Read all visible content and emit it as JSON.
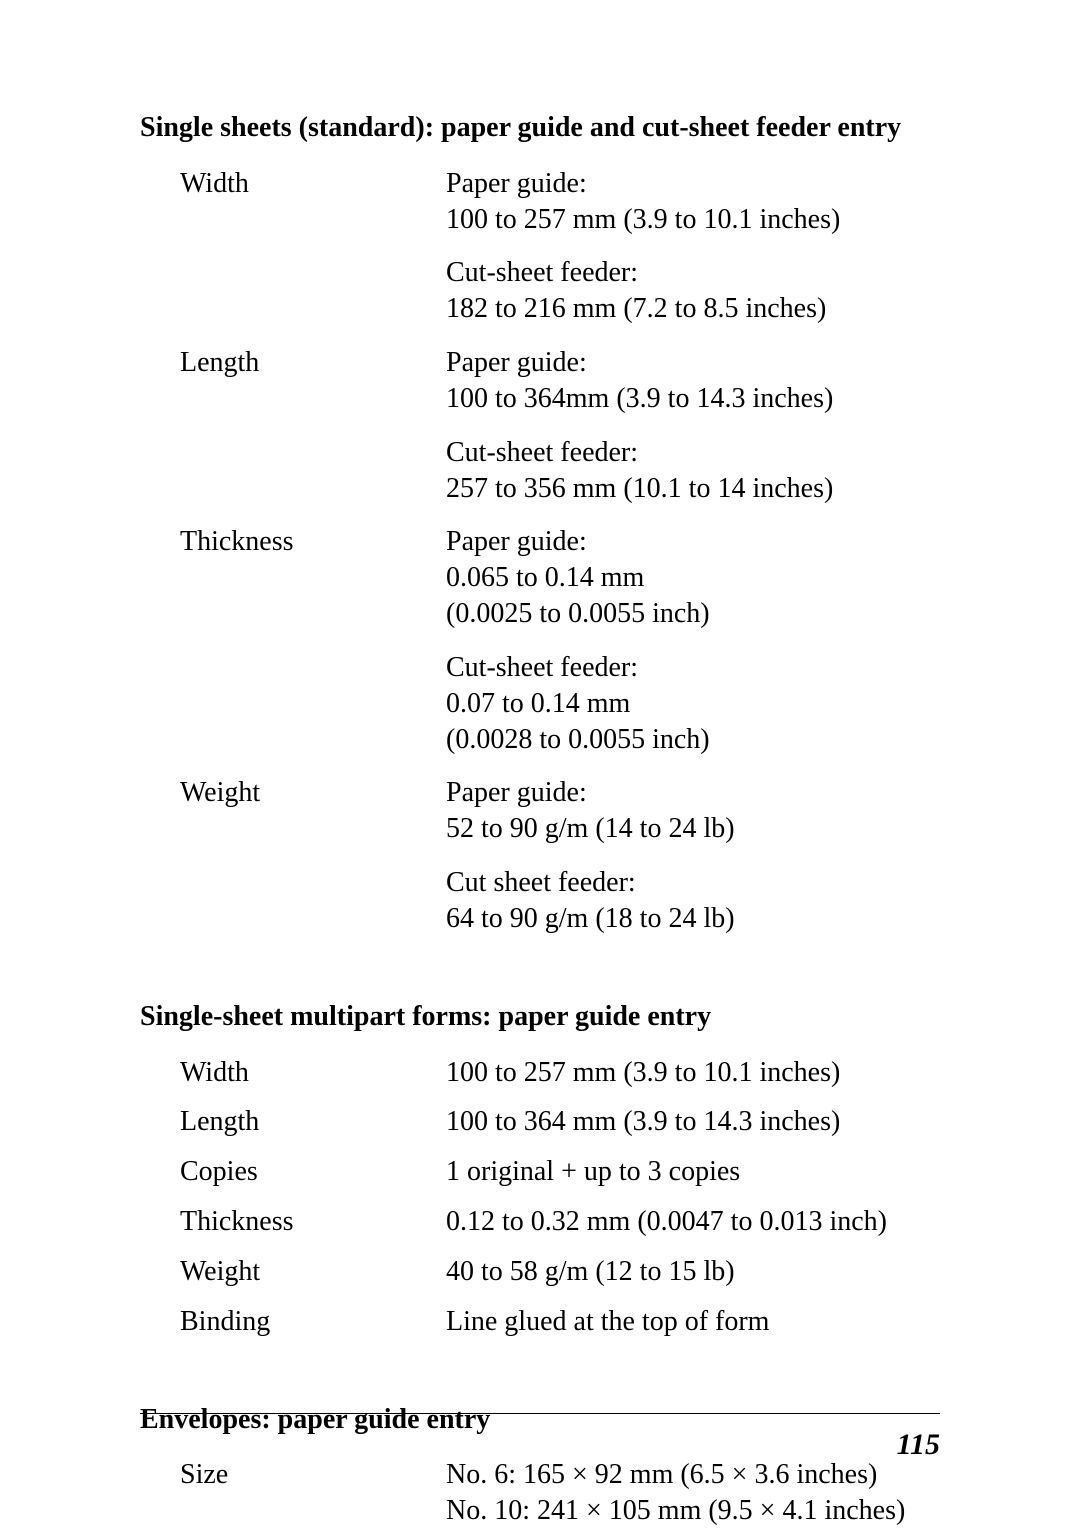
{
  "page_number": "115",
  "sections": [
    {
      "heading": "Single sheets (standard): paper guide and cut-sheet feeder entry",
      "rows": [
        {
          "label": "Width",
          "blocks": [
            [
              "Paper guide:",
              "100 to 257 mm (3.9 to 10.1 inches)"
            ],
            [
              "Cut-sheet feeder:",
              "182 to 216 mm (7.2 to 8.5 inches)"
            ]
          ]
        },
        {
          "label": "Length",
          "blocks": [
            [
              "Paper guide:",
              "100 to 364mm (3.9 to 14.3 inches)"
            ],
            [
              "Cut-sheet feeder:",
              "257 to 356 mm (10.1 to 14 inches)"
            ]
          ]
        },
        {
          "label": "Thickness",
          "blocks": [
            [
              "Paper guide:",
              "0.065 to 0.14 mm",
              "(0.0025 to 0.0055 inch)"
            ],
            [
              "Cut-sheet feeder:",
              "0.07 to 0.14 mm",
              "(0.0028 to 0.0055 inch)"
            ]
          ]
        },
        {
          "label": "Weight",
          "blocks": [
            [
              "Paper guide:",
              "52 to 90 g/m  (14 to 24 lb)"
            ],
            [
              "Cut sheet feeder:",
              "64 to 90 g/m  (18 to 24 lb)"
            ]
          ]
        }
      ]
    },
    {
      "heading": "Single-sheet multipart forms: paper guide entry",
      "simple_rows": [
        {
          "label": "Width",
          "value": "100 to 257 mm (3.9 to 10.1 inches)"
        },
        {
          "label": "Length",
          "value": "100 to 364 mm (3.9 to 14.3 inches)"
        },
        {
          "label": "Copies",
          "value": "1 original + up to 3 copies"
        },
        {
          "label": "Thickness",
          "value": "0.12 to 0.32 mm (0.0047 to 0.013 inch)"
        },
        {
          "label": "Weight",
          "value": "40 to 58 g/m  (12 to 15 lb)"
        },
        {
          "label": "Binding",
          "value": "Line glued at the top of form"
        }
      ]
    },
    {
      "heading": "Envelopes: paper guide entry",
      "rows": [
        {
          "label": "Size",
          "blocks": [
            [
              "No. 6: 165 × 92 mm (6.5 × 3.6 inches)",
              "No. 10: 241 × 105 mm (9.5 × 4.1 inches)"
            ]
          ]
        }
      ]
    }
  ]
}
